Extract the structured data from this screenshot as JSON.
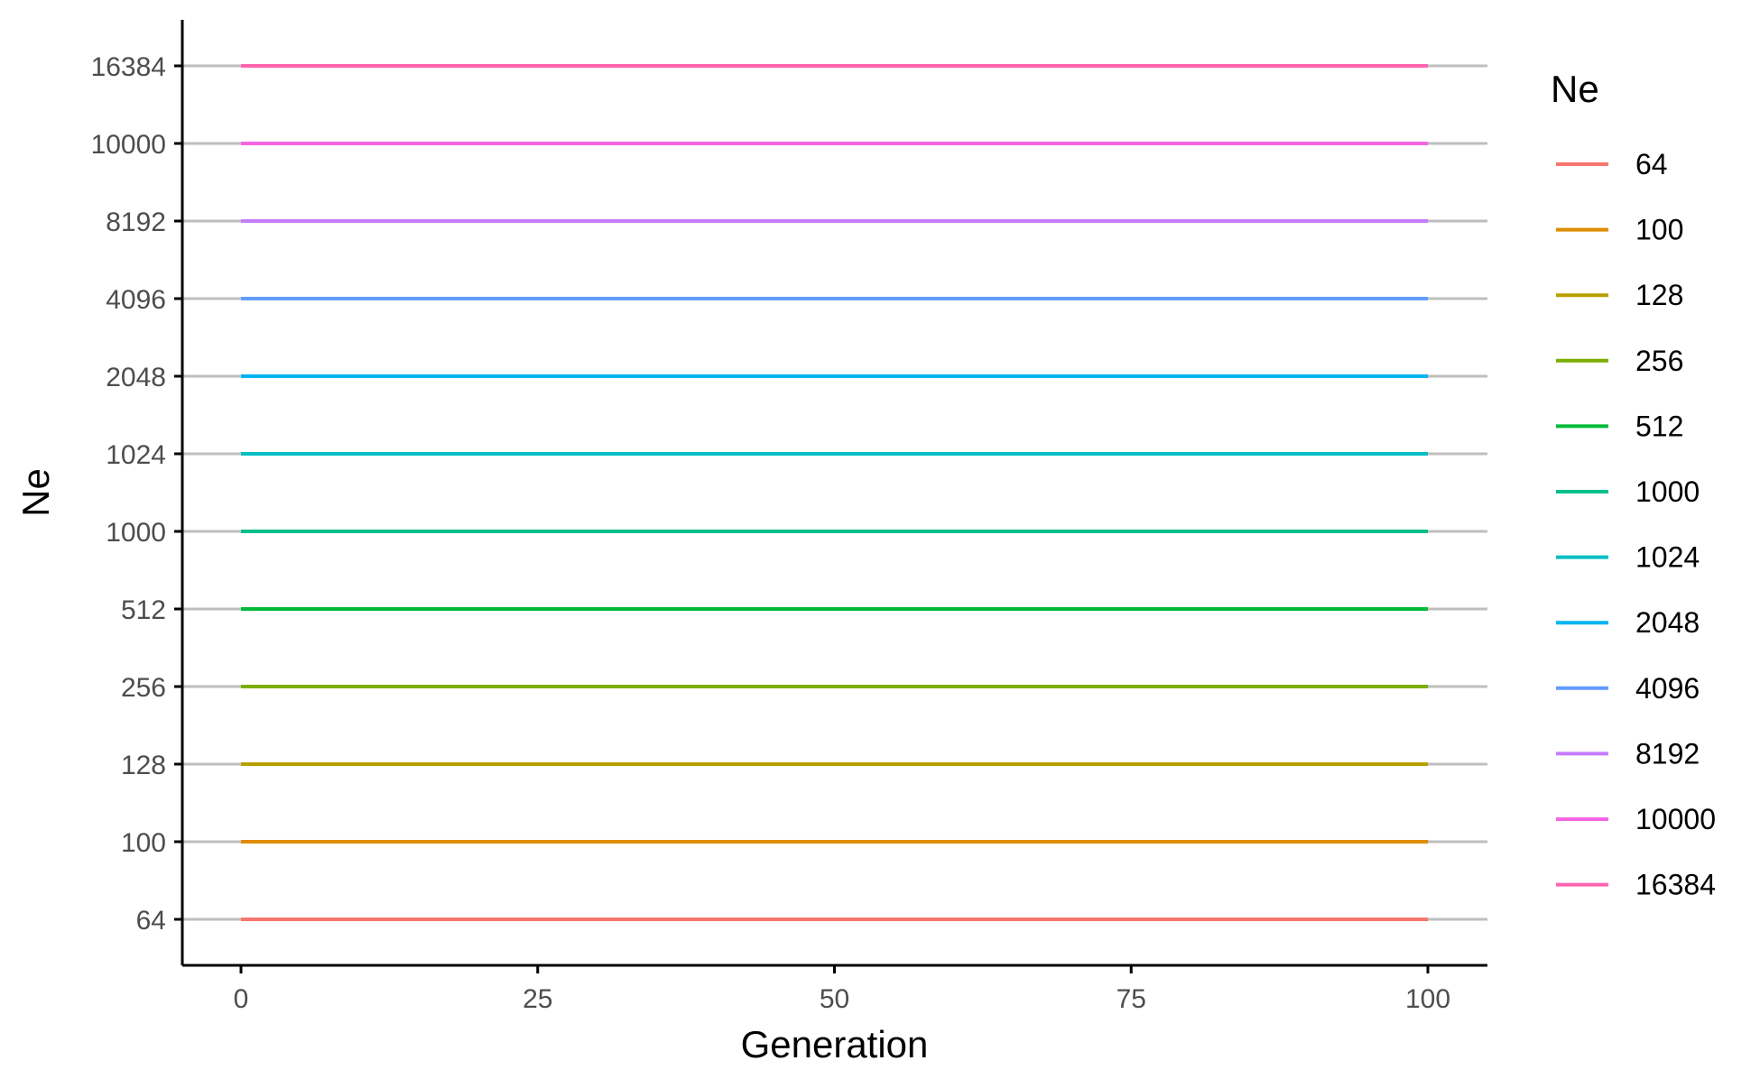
{
  "chart_data": {
    "type": "line",
    "xlabel": "Generation",
    "ylabel": "Ne",
    "xlim": [
      0,
      100
    ],
    "x_ticks": [
      "0",
      "25",
      "50",
      "75",
      "100"
    ],
    "y_categories": [
      "64",
      "100",
      "128",
      "256",
      "512",
      "1000",
      "1024",
      "2048",
      "4096",
      "8192",
      "10000",
      "16384"
    ],
    "grid": "horizontal major lines",
    "legend": {
      "title": "Ne",
      "placement": "right",
      "entries": [
        "64",
        "100",
        "128",
        "256",
        "512",
        "1000",
        "1024",
        "2048",
        "4096",
        "8192",
        "10000",
        "16384"
      ]
    },
    "series": [
      {
        "name": "64",
        "color": "#F8766D",
        "x": [
          0,
          100
        ],
        "y": [
          "64",
          "64"
        ]
      },
      {
        "name": "100",
        "color": "#DE8C00",
        "x": [
          0,
          100
        ],
        "y": [
          "100",
          "100"
        ]
      },
      {
        "name": "128",
        "color": "#B79F00",
        "x": [
          0,
          100
        ],
        "y": [
          "128",
          "128"
        ]
      },
      {
        "name": "256",
        "color": "#7CAE00",
        "x": [
          0,
          100
        ],
        "y": [
          "256",
          "256"
        ]
      },
      {
        "name": "512",
        "color": "#00BA38",
        "x": [
          0,
          100
        ],
        "y": [
          "512",
          "512"
        ]
      },
      {
        "name": "1000",
        "color": "#00C08B",
        "x": [
          0,
          100
        ],
        "y": [
          "1000",
          "1000"
        ]
      },
      {
        "name": "1024",
        "color": "#00BFC4",
        "x": [
          0,
          100
        ],
        "y": [
          "1024",
          "1024"
        ]
      },
      {
        "name": "2048",
        "color": "#00B4F0",
        "x": [
          0,
          100
        ],
        "y": [
          "2048",
          "2048"
        ]
      },
      {
        "name": "4096",
        "color": "#619CFF",
        "x": [
          0,
          100
        ],
        "y": [
          "4096",
          "4096"
        ]
      },
      {
        "name": "8192",
        "color": "#C77CFF",
        "x": [
          0,
          100
        ],
        "y": [
          "8192",
          "8192"
        ]
      },
      {
        "name": "10000",
        "color": "#F564E3",
        "x": [
          0,
          100
        ],
        "y": [
          "10000",
          "10000"
        ]
      },
      {
        "name": "16384",
        "color": "#FF64B0",
        "x": [
          0,
          100
        ],
        "y": [
          "16384",
          "16384"
        ]
      }
    ],
    "colors": {
      "gridline": "#bebebe",
      "axis": "#000000",
      "tick_text": "#4d4d4d"
    }
  }
}
